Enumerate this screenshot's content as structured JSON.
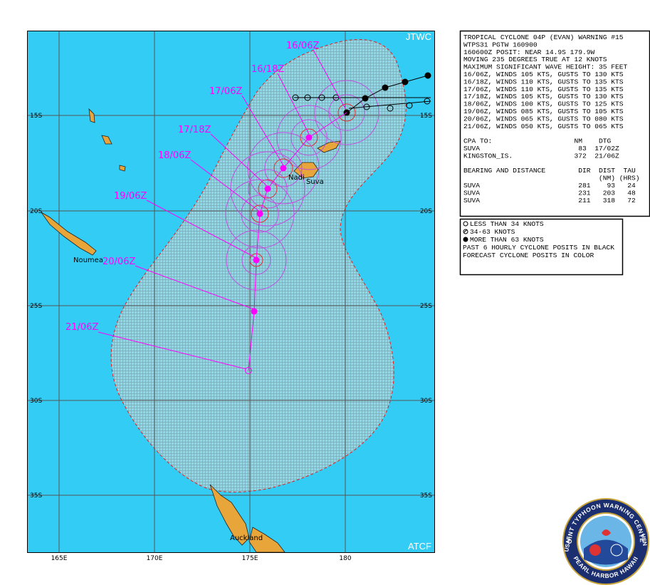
{
  "map": {
    "corner_labels": [
      "JTWC",
      "ATCF"
    ],
    "lat_labels": [
      "15S",
      "20S",
      "25S",
      "30S",
      "35S"
    ],
    "lon_labels": [
      "165E",
      "170E",
      "175E",
      "180"
    ],
    "places": [
      "Noumea",
      "Nadi",
      "Suva",
      "Auckland"
    ],
    "forecast_labels": [
      "16/06Z",
      "16/18Z",
      "17/06Z",
      "17/18Z",
      "18/06Z",
      "19/06Z",
      "20/06Z",
      "21/06Z"
    ]
  },
  "warning": {
    "lines": [
      "TROPICAL CYCLONE 04P (EVAN) WARNING #15",
      "WTPS31 PGTW 160900",
      "160600Z POSIT: NEAR 14.9S 179.9W",
      "MOVING 235 DEGREES TRUE AT 12 KNOTS",
      "MAXIMUM SIGNIFICANT WAVE HEIGHT: 35 FEET",
      "16/06Z, WINDS 105 KTS, GUSTS TO 130 KTS",
      "16/18Z, WINDS 110 KTS, GUSTS TO 135 KTS",
      "17/06Z, WINDS 110 KTS, GUSTS TO 135 KTS",
      "17/18Z, WINDS 105 KTS, GUSTS TO 130 KTS",
      "18/06Z, WINDS 100 KTS, GUSTS TO 125 KTS",
      "19/06Z, WINDS 085 KTS, GUSTS TO 105 KTS",
      "20/06Z, WINDS 065 KTS, GUSTS TO 080 KTS",
      "21/06Z, WINDS 050 KTS, GUSTS TO 065 KTS"
    ],
    "cpa_lines": [
      "CPA TO:                    NM    DTG",
      "SUVA                        83  17/02Z",
      "KINGSTON_IS.               372  21/06Z"
    ],
    "bearing_lines": [
      "BEARING AND DISTANCE        DIR  DIST  TAU",
      "                                 (NM) (HRS)",
      "SUVA                        281    93   24",
      "SUVA                        231   203   48",
      "SUVA                        211   318   72"
    ]
  },
  "legend": {
    "items": [
      "LESS THAN 34 KNOTS",
      "34-63 KNOTS",
      "MORE THAN 63 KNOTS"
    ],
    "notes": [
      "PAST 6 HOURLY CYCLONE POSITS IN BLACK",
      "FORECAST CYCLONE POSITS IN COLOR"
    ]
  },
  "logo": {
    "top": "JOINT TYPHOON WARNING CENTER",
    "bottom": "PEARL HARBOR HAWAII",
    "left": "USAF",
    "right": "USN"
  }
}
